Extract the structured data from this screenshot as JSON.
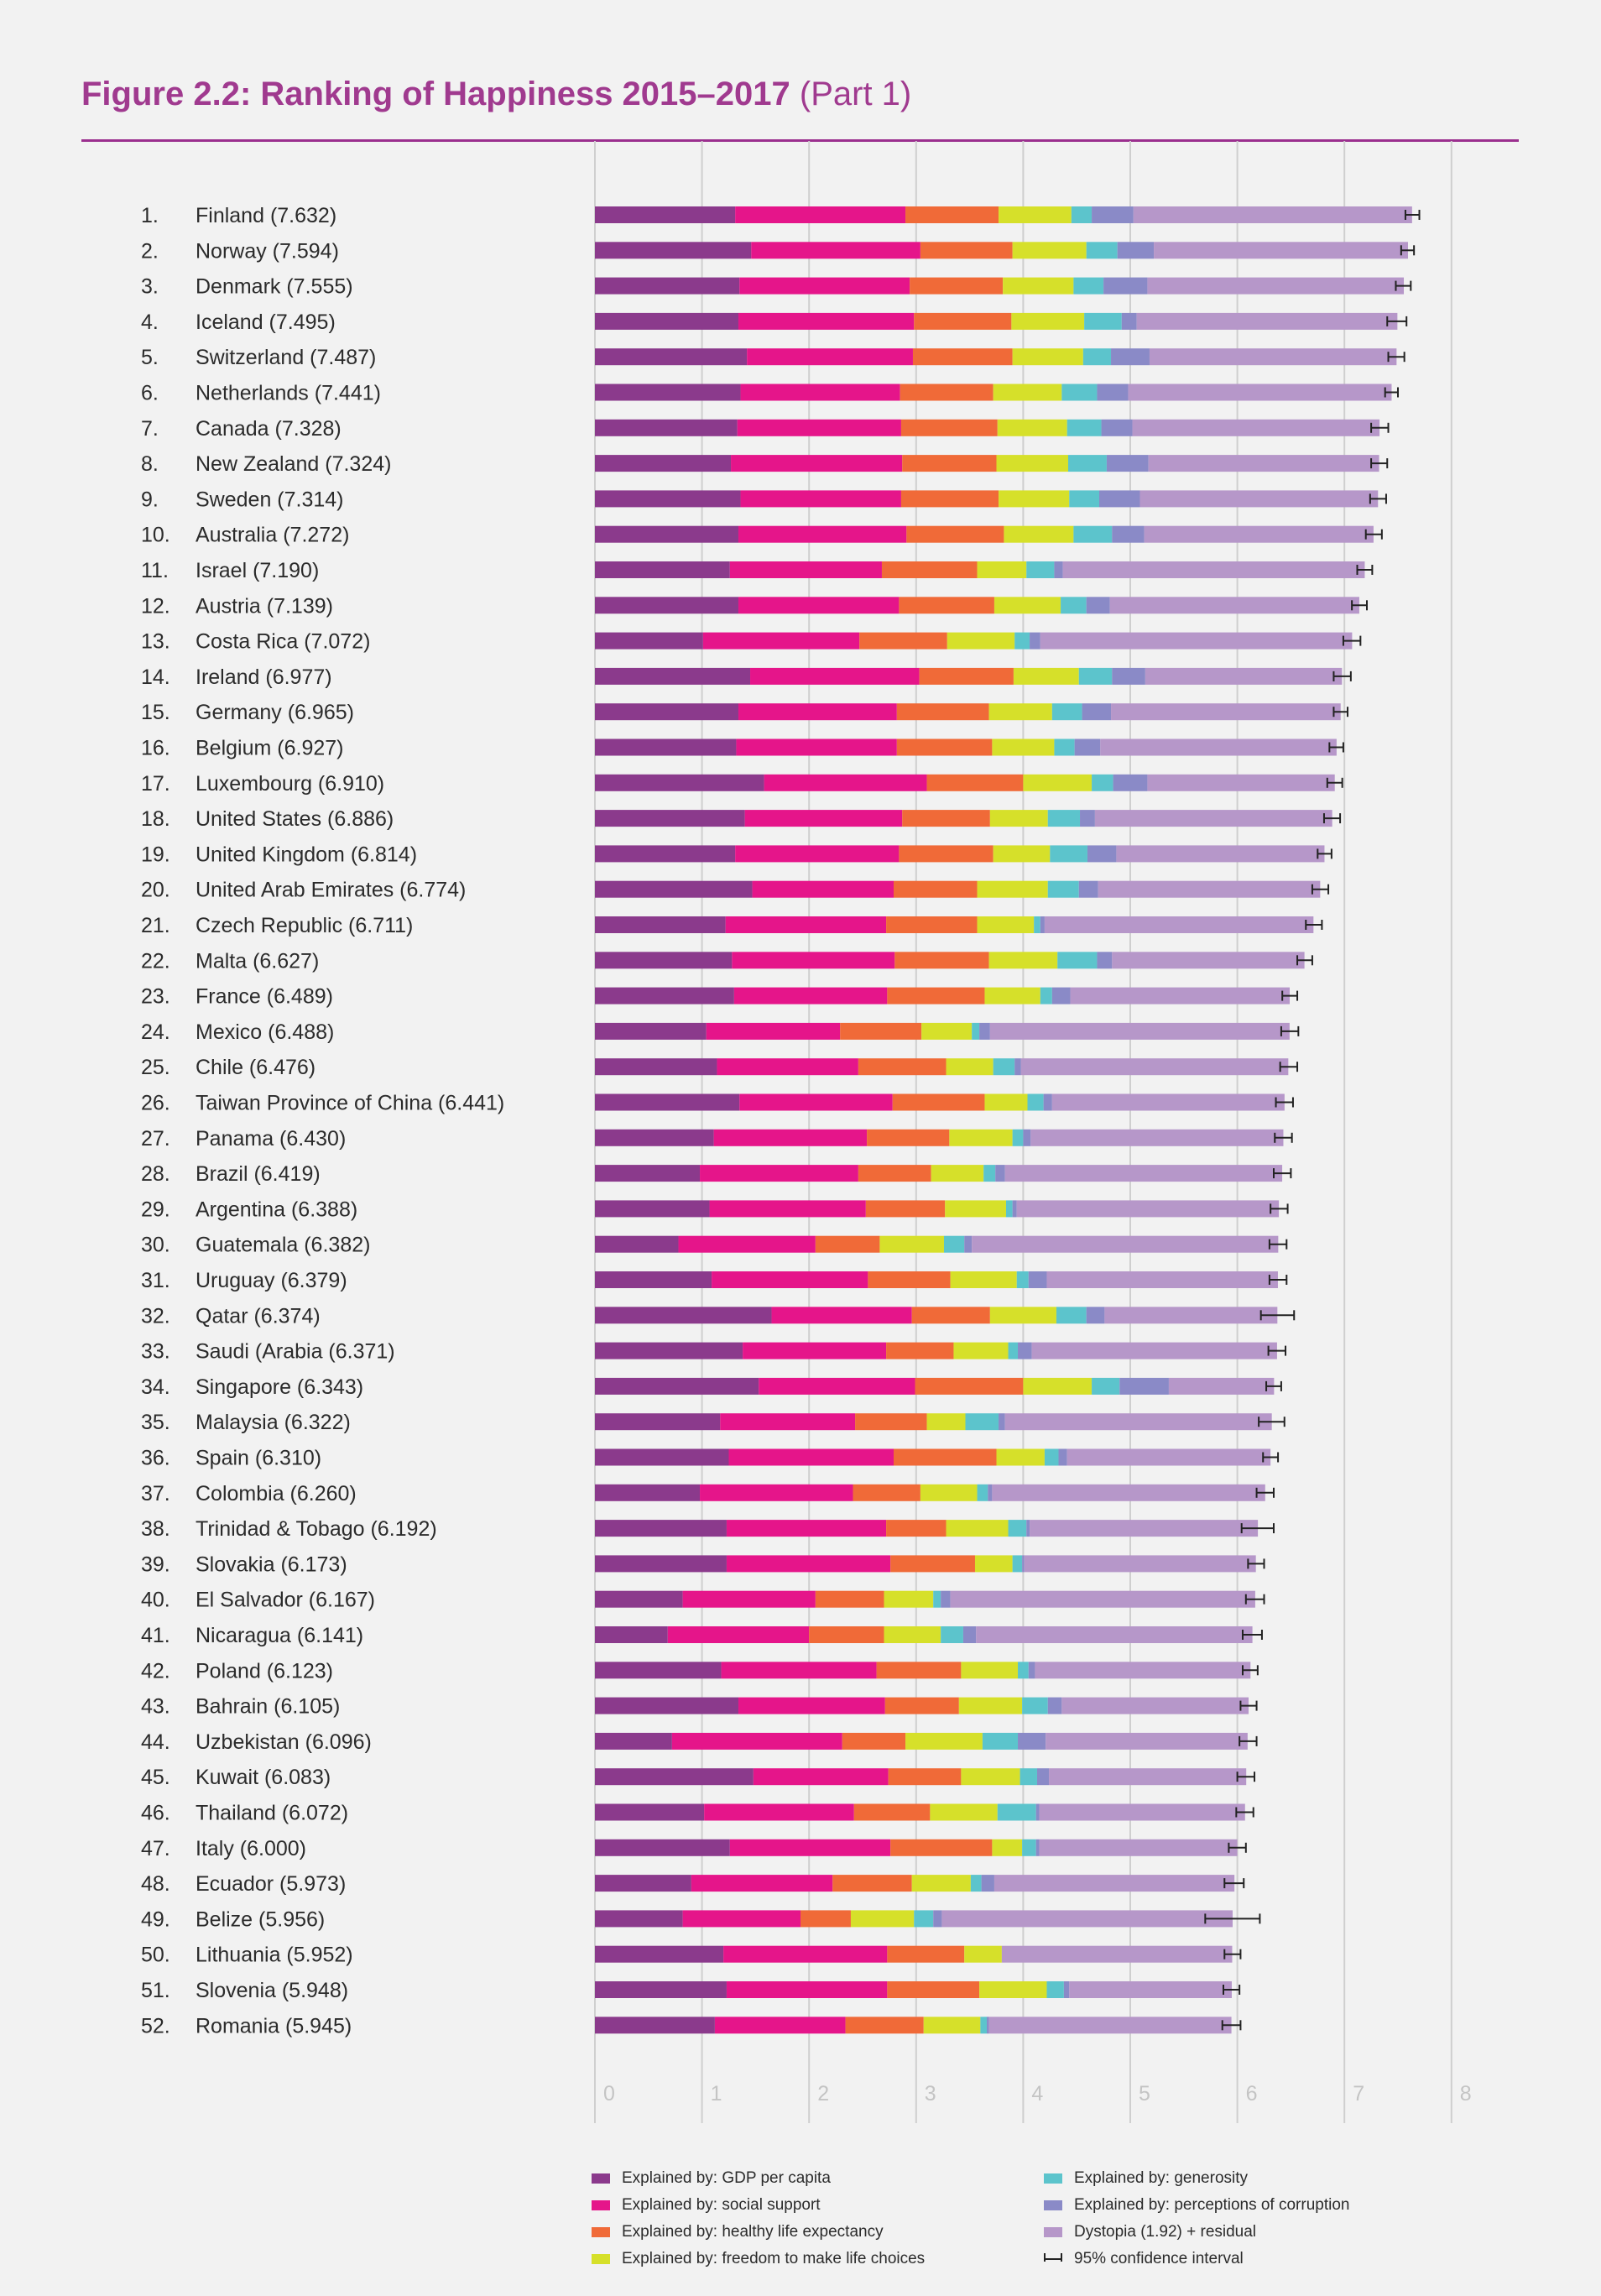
{
  "header": {
    "title_bold": "Figure 2.2: Ranking of Happiness 2015–2017",
    "title_light": "(Part 1)"
  },
  "chart_data": {
    "type": "bar",
    "orientation": "horizontal",
    "stacked": true,
    "title": "Figure 2.2: Ranking of Happiness 2015–2017 (Part 1)",
    "xlim": [
      0,
      8
    ],
    "xticks": [
      "0",
      "1",
      "2",
      "3",
      "4",
      "5",
      "6",
      "7",
      "8"
    ],
    "grid": true,
    "legend_position": "bottom",
    "components": [
      {
        "name": "Explained by: GDP per capita",
        "color": "#8b3a8c"
      },
      {
        "name": "Explained by: social support",
        "color": "#e5158a"
      },
      {
        "name": "Explained by: healthy life expectancy",
        "color": "#f06a38"
      },
      {
        "name": "Explained by: freedom to make life choices",
        "color": "#d6e02a"
      },
      {
        "name": "Explained by: generosity",
        "color": "#5cc4cc"
      },
      {
        "name": "Explained by: perceptions of corruption",
        "color": "#8a8ac7"
      },
      {
        "name": "Dystopia (1.92) + residual",
        "color": "#b697c9"
      }
    ],
    "ci_legend": "95% confidence interval",
    "ci_color": "#222222",
    "rows": [
      {
        "rank": "1.",
        "label": "Finland (7.632)",
        "score": 7.632,
        "ci": [
          7.57,
          7.7
        ],
        "c": [
          1.31,
          1.59,
          0.87,
          0.68,
          0.19,
          0.39
        ]
      },
      {
        "rank": "2.",
        "label": "Norway (7.594)",
        "score": 7.594,
        "ci": [
          7.53,
          7.65
        ],
        "c": [
          1.46,
          1.58,
          0.86,
          0.69,
          0.29,
          0.34
        ]
      },
      {
        "rank": "3.",
        "label": "Denmark (7.555)",
        "score": 7.555,
        "ci": [
          7.48,
          7.62
        ],
        "c": [
          1.35,
          1.59,
          0.87,
          0.66,
          0.28,
          0.41
        ]
      },
      {
        "rank": "4.",
        "label": "Iceland (7.495)",
        "score": 7.495,
        "ci": [
          7.4,
          7.58
        ],
        "c": [
          1.34,
          1.64,
          0.91,
          0.68,
          0.35,
          0.14
        ]
      },
      {
        "rank": "5.",
        "label": "Switzerland (7.487)",
        "score": 7.487,
        "ci": [
          7.41,
          7.56
        ],
        "c": [
          1.42,
          1.55,
          0.93,
          0.66,
          0.26,
          0.36
        ]
      },
      {
        "rank": "6.",
        "label": "Netherlands (7.441)",
        "score": 7.441,
        "ci": [
          7.38,
          7.5
        ],
        "c": [
          1.36,
          1.49,
          0.87,
          0.64,
          0.33,
          0.29
        ]
      },
      {
        "rank": "7.",
        "label": "Canada (7.328)",
        "score": 7.328,
        "ci": [
          7.25,
          7.41
        ],
        "c": [
          1.33,
          1.53,
          0.9,
          0.65,
          0.32,
          0.29
        ]
      },
      {
        "rank": "8.",
        "label": "New Zealand (7.324)",
        "score": 7.324,
        "ci": [
          7.25,
          7.4
        ],
        "c": [
          1.27,
          1.6,
          0.88,
          0.67,
          0.36,
          0.39
        ]
      },
      {
        "rank": "9.",
        "label": "Sweden (7.314)",
        "score": 7.314,
        "ci": [
          7.24,
          7.39
        ],
        "c": [
          1.36,
          1.5,
          0.91,
          0.66,
          0.28,
          0.38
        ]
      },
      {
        "rank": "10.",
        "label": "Australia (7.272)",
        "score": 7.272,
        "ci": [
          7.2,
          7.35
        ],
        "c": [
          1.34,
          1.57,
          0.91,
          0.65,
          0.36,
          0.3
        ]
      },
      {
        "rank": "11.",
        "label": "Israel (7.190)",
        "score": 7.19,
        "ci": [
          7.12,
          7.26
        ],
        "c": [
          1.26,
          1.42,
          0.89,
          0.46,
          0.26,
          0.08
        ]
      },
      {
        "rank": "12.",
        "label": "Austria (7.139)",
        "score": 7.139,
        "ci": [
          7.07,
          7.21
        ],
        "c": [
          1.34,
          1.5,
          0.89,
          0.62,
          0.24,
          0.22
        ]
      },
      {
        "rank": "13.",
        "label": "Costa Rica (7.072)",
        "score": 7.072,
        "ci": [
          6.99,
          7.15
        ],
        "c": [
          1.01,
          1.46,
          0.82,
          0.63,
          0.14,
          0.1
        ]
      },
      {
        "rank": "14.",
        "label": "Ireland (6.977)",
        "score": 6.977,
        "ci": [
          6.9,
          7.06
        ],
        "c": [
          1.45,
          1.58,
          0.88,
          0.61,
          0.31,
          0.31
        ]
      },
      {
        "rank": "15.",
        "label": "Germany (6.965)",
        "score": 6.965,
        "ci": [
          6.9,
          7.03
        ],
        "c": [
          1.34,
          1.48,
          0.86,
          0.59,
          0.28,
          0.27
        ]
      },
      {
        "rank": "16.",
        "label": "Belgium (6.927)",
        "score": 6.927,
        "ci": [
          6.86,
          6.99
        ],
        "c": [
          1.32,
          1.5,
          0.89,
          0.58,
          0.19,
          0.24
        ]
      },
      {
        "rank": "17.",
        "label": "Luxembourg (6.910)",
        "score": 6.91,
        "ci": [
          6.84,
          6.98
        ],
        "c": [
          1.58,
          1.52,
          0.9,
          0.64,
          0.2,
          0.32
        ]
      },
      {
        "rank": "18.",
        "label": "United States (6.886)",
        "score": 6.886,
        "ci": [
          6.81,
          6.96
        ],
        "c": [
          1.4,
          1.47,
          0.82,
          0.54,
          0.3,
          0.14
        ]
      },
      {
        "rank": "19.",
        "label": "United Kingdom (6.814)",
        "score": 6.814,
        "ci": [
          6.75,
          6.88
        ],
        "c": [
          1.31,
          1.53,
          0.88,
          0.53,
          0.35,
          0.27
        ]
      },
      {
        "rank": "20.",
        "label": "United Arab Emirates (6.774)",
        "score": 6.774,
        "ci": [
          6.7,
          6.85
        ],
        "c": [
          1.47,
          1.32,
          0.78,
          0.66,
          0.29,
          0.18
        ]
      },
      {
        "rank": "21.",
        "label": "Czech Republic (6.711)",
        "score": 6.711,
        "ci": [
          6.64,
          6.79
        ],
        "c": [
          1.22,
          1.5,
          0.85,
          0.53,
          0.06,
          0.04
        ]
      },
      {
        "rank": "22.",
        "label": "Malta (6.627)",
        "score": 6.627,
        "ci": [
          6.56,
          6.7
        ],
        "c": [
          1.28,
          1.52,
          0.88,
          0.64,
          0.37,
          0.14
        ]
      },
      {
        "rank": "23.",
        "label": "France (6.489)",
        "score": 6.489,
        "ci": [
          6.42,
          6.56
        ],
        "c": [
          1.3,
          1.43,
          0.91,
          0.52,
          0.11,
          0.17
        ]
      },
      {
        "rank": "24.",
        "label": "Mexico (6.488)",
        "score": 6.488,
        "ci": [
          6.41,
          6.57
        ],
        "c": [
          1.04,
          1.25,
          0.76,
          0.47,
          0.07,
          0.1
        ]
      },
      {
        "rank": "25.",
        "label": "Chile (6.476)",
        "score": 6.476,
        "ci": [
          6.4,
          6.56
        ],
        "c": [
          1.14,
          1.32,
          0.82,
          0.44,
          0.2,
          0.06
        ]
      },
      {
        "rank": "26.",
        "label": "Taiwan Province of China (6.441)",
        "score": 6.441,
        "ci": [
          6.36,
          6.52
        ],
        "c": [
          1.35,
          1.43,
          0.86,
          0.4,
          0.15,
          0.08
        ]
      },
      {
        "rank": "27.",
        "label": "Panama (6.430)",
        "score": 6.43,
        "ci": [
          6.35,
          6.51
        ],
        "c": [
          1.11,
          1.43,
          0.77,
          0.59,
          0.1,
          0.07
        ]
      },
      {
        "rank": "28.",
        "label": "Brazil (6.419)",
        "score": 6.419,
        "ci": [
          6.34,
          6.5
        ],
        "c": [
          0.98,
          1.48,
          0.68,
          0.49,
          0.11,
          0.09
        ]
      },
      {
        "rank": "29.",
        "label": "Argentina (6.388)",
        "score": 6.388,
        "ci": [
          6.31,
          6.47
        ],
        "c": [
          1.07,
          1.46,
          0.74,
          0.57,
          0.06,
          0.04
        ]
      },
      {
        "rank": "30.",
        "label": "Guatemala (6.382)",
        "score": 6.382,
        "ci": [
          6.3,
          6.46
        ],
        "c": [
          0.78,
          1.28,
          0.6,
          0.6,
          0.19,
          0.07
        ]
      },
      {
        "rank": "31.",
        "label": "Uruguay (6.379)",
        "score": 6.379,
        "ci": [
          6.3,
          6.46
        ],
        "c": [
          1.09,
          1.46,
          0.77,
          0.62,
          0.11,
          0.17
        ]
      },
      {
        "rank": "32.",
        "label": "Qatar (6.374)",
        "score": 6.374,
        "ci": [
          6.22,
          6.53
        ],
        "c": [
          1.65,
          1.31,
          0.73,
          0.62,
          0.28,
          0.17
        ]
      },
      {
        "rank": "33.",
        "label": "Saudi (Arabia (6.371)",
        "score": 6.371,
        "ci": [
          6.29,
          6.45
        ],
        "c": [
          1.38,
          1.34,
          0.63,
          0.51,
          0.09,
          0.13
        ]
      },
      {
        "rank": "34.",
        "label": "Singapore (6.343)",
        "score": 6.343,
        "ci": [
          6.27,
          6.41
        ],
        "c": [
          1.53,
          1.46,
          1.01,
          0.64,
          0.26,
          0.46
        ]
      },
      {
        "rank": "35.",
        "label": "Malaysia (6.322)",
        "score": 6.322,
        "ci": [
          6.2,
          6.44
        ],
        "c": [
          1.17,
          1.26,
          0.67,
          0.36,
          0.31,
          0.06
        ]
      },
      {
        "rank": "36.",
        "label": "Spain (6.310)",
        "score": 6.31,
        "ci": [
          6.24,
          6.38
        ],
        "c": [
          1.25,
          1.54,
          0.96,
          0.45,
          0.13,
          0.08
        ]
      },
      {
        "rank": "37.",
        "label": "Colombia (6.260)",
        "score": 6.26,
        "ci": [
          6.18,
          6.34
        ],
        "c": [
          0.98,
          1.43,
          0.63,
          0.53,
          0.1,
          0.04
        ]
      },
      {
        "rank": "38.",
        "label": "Trinidad & Tobago (6.192)",
        "score": 6.192,
        "ci": [
          6.04,
          6.34
        ],
        "c": [
          1.23,
          1.49,
          0.56,
          0.58,
          0.17,
          0.03
        ]
      },
      {
        "rank": "39.",
        "label": "Slovakia (6.173)",
        "score": 6.173,
        "ci": [
          6.1,
          6.25
        ],
        "c": [
          1.23,
          1.53,
          0.79,
          0.35,
          0.09,
          0.02
        ]
      },
      {
        "rank": "40.",
        "label": "El Salvador (6.167)",
        "score": 6.167,
        "ci": [
          6.08,
          6.25
        ],
        "c": [
          0.82,
          1.24,
          0.64,
          0.46,
          0.07,
          0.09
        ]
      },
      {
        "rank": "41.",
        "label": "Nicaragua (6.141)",
        "score": 6.141,
        "ci": [
          6.05,
          6.23
        ],
        "c": [
          0.68,
          1.32,
          0.7,
          0.53,
          0.21,
          0.12
        ]
      },
      {
        "rank": "42.",
        "label": "Poland (6.123)",
        "score": 6.123,
        "ci": [
          6.05,
          6.19
        ],
        "c": [
          1.18,
          1.45,
          0.79,
          0.53,
          0.1,
          0.06
        ]
      },
      {
        "rank": "43.",
        "label": "Bahrain (6.105)",
        "score": 6.105,
        "ci": [
          6.03,
          6.18
        ],
        "c": [
          1.34,
          1.37,
          0.69,
          0.59,
          0.24,
          0.13
        ]
      },
      {
        "rank": "44.",
        "label": "Uzbekistan (6.096)",
        "score": 6.096,
        "ci": [
          6.02,
          6.18
        ],
        "c": [
          0.72,
          1.59,
          0.59,
          0.72,
          0.33,
          0.26
        ]
      },
      {
        "rank": "45.",
        "label": "Kuwait (6.083)",
        "score": 6.083,
        "ci": [
          6.0,
          6.16
        ],
        "c": [
          1.48,
          1.26,
          0.68,
          0.55,
          0.16,
          0.11
        ]
      },
      {
        "rank": "46.",
        "label": "Thailand (6.072)",
        "score": 6.072,
        "ci": [
          5.99,
          6.15
        ],
        "c": [
          1.02,
          1.4,
          0.71,
          0.63,
          0.36,
          0.03
        ]
      },
      {
        "rank": "47.",
        "label": "Italy (6.000)",
        "score": 6.0,
        "ci": [
          5.92,
          6.08
        ],
        "c": [
          1.26,
          1.5,
          0.95,
          0.28,
          0.13,
          0.03
        ]
      },
      {
        "rank": "48.",
        "label": "Ecuador (5.973)",
        "score": 5.973,
        "ci": [
          5.88,
          6.06
        ],
        "c": [
          0.9,
          1.32,
          0.74,
          0.55,
          0.1,
          0.12
        ]
      },
      {
        "rank": "49.",
        "label": "Belize (5.956)",
        "score": 5.956,
        "ci": [
          5.7,
          6.21
        ],
        "c": [
          0.82,
          1.1,
          0.47,
          0.59,
          0.18,
          0.08
        ]
      },
      {
        "rank": "50.",
        "label": "Lithuania (5.952)",
        "score": 5.952,
        "ci": [
          5.88,
          6.03
        ],
        "c": [
          1.2,
          1.53,
          0.72,
          0.35,
          0.0,
          0.0
        ]
      },
      {
        "rank": "51.",
        "label": "Slovenia (5.948)",
        "score": 5.948,
        "ci": [
          5.87,
          6.02
        ],
        "c": [
          1.23,
          1.5,
          0.86,
          0.63,
          0.16,
          0.05
        ]
      },
      {
        "rank": "52.",
        "label": "Romania (5.945)",
        "score": 5.945,
        "ci": [
          5.86,
          6.03
        ],
        "c": [
          1.12,
          1.22,
          0.73,
          0.53,
          0.06,
          0.02
        ]
      }
    ]
  }
}
